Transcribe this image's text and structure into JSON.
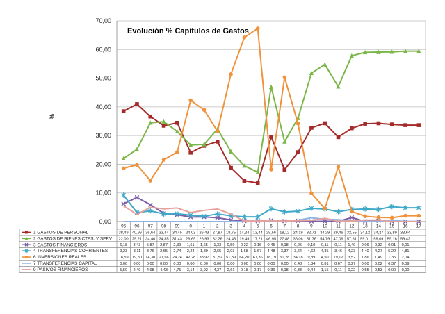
{
  "chart_data": {
    "type": "line",
    "title": "Evolución % Capítulos de Gastos",
    "ylabel": "%",
    "ylim": [
      0,
      70
    ],
    "yticks": [
      "0,00",
      "10,00",
      "20,00",
      "30,00",
      "40,00",
      "50,00",
      "60,00",
      "70,00"
    ],
    "categories": [
      "95",
      "96",
      "97",
      "98",
      "99",
      "0",
      "1",
      "2",
      "3",
      "4",
      "5",
      "6",
      "7",
      "8",
      "9",
      "10",
      "11",
      "12",
      "13",
      "14",
      "15",
      "16",
      "17"
    ],
    "series": [
      {
        "name": "1 GASTOS DE PERSONAL",
        "color": "#a52a2a",
        "marker": "square",
        "values": [
          38.49,
          40.96,
          36.64,
          33.44,
          34.45,
          24.03,
          26.43,
          27.87,
          18.75,
          14.24,
          13.44,
          29.56,
          18.12,
          24.19,
          32.71,
          34.29,
          29.46,
          32.55,
          34.12,
          34.27,
          33.89,
          33.64,
          33.64
        ],
        "labels": [
          "38,49",
          "40,96",
          "36,64",
          "33,44",
          "34,45",
          "24,03",
          "26,43",
          "27,87",
          "18,75",
          "14,24",
          "13,44",
          "29,56",
          "18,12",
          "24,19",
          "32,71",
          "34,29",
          "29,46",
          "32,55",
          "34,12",
          "34,27",
          "33,89",
          "33,64",
          ""
        ]
      },
      {
        "name": "2 GASTOS DE BIENES CTES. Y SERV",
        "color": "#7ab648",
        "marker": "triangle",
        "values": [
          22.0,
          25.21,
          34.46,
          34.85,
          31.43,
          26.69,
          26.93,
          32.26,
          24.43,
          19.49,
          17.21,
          46.95,
          27.88,
          36.06,
          51.76,
          54.79,
          47.06,
          57.81,
          59.01,
          59.09,
          59.16,
          59.42,
          59.42
        ],
        "labels": [
          "22,00",
          "25,21",
          "34,46",
          "34,85",
          "31,43",
          "26,69",
          "26,93",
          "32,26",
          "24,43",
          "19,49",
          "17,21",
          "46,95",
          "27,88",
          "36,06",
          "51,76",
          "54,79",
          "47,06",
          "57,81",
          "59,01",
          "59,09",
          "59,16",
          "59,42",
          ""
        ]
      },
      {
        "name": "3 GASTOS FINANCIEROS",
        "color": "#7b5ea7",
        "marker": "x",
        "values": [
          6.18,
          8.43,
          5.87,
          2.87,
          2.39,
          1.61,
          1.65,
          1.33,
          0.59,
          0.22,
          0.16,
          0.45,
          0.18,
          0.25,
          0.1,
          0.11,
          0.11,
          1.4,
          0.06,
          0.32,
          0.01,
          0.01,
          0.01
        ],
        "labels": [
          "6,18",
          "8,43",
          "5,87",
          "2,87",
          "2,39",
          "1,61",
          "1,65",
          "1,33",
          "0,59",
          "0,22",
          "0,16",
          "0,45",
          "0,18",
          "0,25",
          "0,10",
          "0,11",
          "0,11",
          "1,40",
          "0,06",
          "0,32",
          "0,01",
          "0,01",
          ""
        ]
      },
      {
        "name": "4 TRANSFERENCIAS CORRIENTES",
        "color": "#3fa8c8",
        "marker": "star",
        "values": [
          9.23,
          3.11,
          3.76,
          2.65,
          2.74,
          2.24,
          1.89,
          2.65,
          2.03,
          1.68,
          1.67,
          4.48,
          3.37,
          3.64,
          4.62,
          4.35,
          3.46,
          4.23,
          4.4,
          4.27,
          5.22,
          4.81,
          4.81
        ],
        "labels": [
          "9,23",
          "3,11",
          "3,76",
          "2,65",
          "2,74",
          "2,24",
          "1,89",
          "2,65",
          "2,03",
          "1,68",
          "1,67",
          "4,48",
          "3,37",
          "3,64",
          "4,62",
          "4,35",
          "3,46",
          "4,23",
          "4,40",
          "4,27",
          "5,22",
          "4,81",
          ""
        ]
      },
      {
        "name": "6 INVERSIONES REALES",
        "color": "#f0923a",
        "marker": "circle",
        "values": [
          18.59,
          19.8,
          14.3,
          21.56,
          24.24,
          42.28,
          38.97,
          31.52,
          51.39,
          64.2,
          67.36,
          18.19,
          50.28,
          34.18,
          9.89,
          4.5,
          19.12,
          3.52,
          1.86,
          1.49,
          1.35,
          2.04,
          2.04
        ],
        "labels": [
          "18,59",
          "19,80",
          "14,30",
          "21,56",
          "24,24",
          "42,28",
          "38,97",
          "31,52",
          "51,39",
          "64,20",
          "67,36",
          "18,19",
          "50,28",
          "34,18",
          "9,89",
          "4,50",
          "19,12",
          "3,52",
          "1,86",
          "1,49",
          "1,35",
          "2,04",
          ""
        ]
      },
      {
        "name": "7 TRANSFERENCIAS CAPITAL",
        "color": "#8fb4e3",
        "marker": "none",
        "values": [
          0,
          0,
          0,
          0,
          0,
          0,
          0,
          0,
          0,
          0,
          0,
          0,
          0,
          0.48,
          1.34,
          0.81,
          0.67,
          0.27,
          0,
          0.02,
          0.37,
          0.09,
          0.09
        ],
        "labels": [
          "0,00",
          "0,00",
          "0,00",
          "0,00",
          "0,00",
          "0,00",
          "0,00",
          "0,00",
          "0,00",
          "0,00",
          "0,00",
          "0,00",
          "0,00",
          "0,48",
          "1,34",
          "0,81",
          "0,67",
          "0,27",
          "0,00",
          "0,02",
          "0,37",
          "0,09",
          ""
        ]
      },
      {
        "name": "9 PASIVOS FINANCIEROS",
        "color": "#e5a19c",
        "marker": "none",
        "values": [
          5.5,
          2.49,
          4.98,
          4.43,
          4.75,
          3.14,
          3.92,
          4.37,
          2.61,
          0.18,
          0.17,
          0.36,
          0.18,
          0.33,
          0.44,
          1.15,
          0.11,
          0.22,
          0.55,
          0.53,
          0,
          0,
          0
        ],
        "labels": [
          "5,50",
          "2,49",
          "4,98",
          "4,43",
          "4,75",
          "3,14",
          "3,92",
          "4,37",
          "2,61",
          "0,18",
          "0,17",
          "0,36",
          "0,18",
          "0,33",
          "0,44",
          "1,15",
          "0,11",
          "0,22",
          "0,55",
          "0,53",
          "0,00",
          "0,00",
          ""
        ]
      }
    ]
  }
}
